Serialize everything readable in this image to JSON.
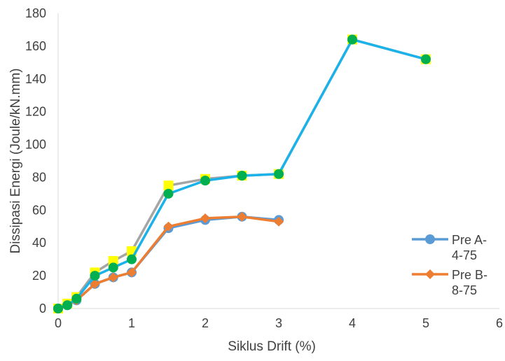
{
  "chart_data": {
    "type": "line",
    "xlabel": "Siklus Drift (%)",
    "ylabel": "Dissipasi Energi (Joule/kN.mm)",
    "xlim": [
      0,
      6
    ],
    "ylim": [
      0,
      180
    ],
    "xticks": [
      0,
      1,
      2,
      3,
      4,
      5,
      6
    ],
    "yticks": [
      0,
      20,
      40,
      60,
      80,
      100,
      120,
      140,
      160,
      180
    ],
    "grid": false,
    "legend_position": "right",
    "series": [
      {
        "key": "gray",
        "color": "#a5a5a5",
        "marker": "square",
        "marker_color": "#ffff00",
        "in_legend": false,
        "x": [
          0,
          0.125,
          0.25,
          0.5,
          0.75,
          1,
          1.5,
          2,
          2.5,
          3,
          4,
          5
        ],
        "y": [
          0,
          3,
          7,
          22,
          29,
          35,
          75,
          79,
          81,
          82,
          164,
          152
        ]
      },
      {
        "name": "Pre A-4-75",
        "legend_lines": [
          "Pre A-",
          "4-75"
        ],
        "color": "#5b9bd5",
        "marker": "circle",
        "in_legend": true,
        "x": [
          0,
          0.125,
          0.25,
          0.5,
          0.75,
          1,
          1.5,
          2,
          2.5,
          3
        ],
        "y": [
          0,
          2,
          5,
          15,
          19,
          22,
          49,
          54,
          56,
          54
        ]
      },
      {
        "name": "Pre B-8-75",
        "legend_lines": [
          "Pre B-",
          "8-75"
        ],
        "color": "#ed7d31",
        "marker": "diamond",
        "in_legend": true,
        "x": [
          0,
          0.125,
          0.25,
          0.5,
          0.75,
          1,
          1.5,
          2,
          2.5,
          3
        ],
        "y": [
          0,
          2,
          5,
          15,
          19,
          22,
          50,
          55,
          56,
          53
        ]
      },
      {
        "key": "cyan",
        "color": "#1ab2e8",
        "marker": "circle",
        "marker_color": "#00b050",
        "in_legend": false,
        "x": [
          0,
          0.125,
          0.25,
          0.5,
          0.75,
          1,
          1.5,
          2,
          2.5,
          3,
          4,
          5
        ],
        "y": [
          0,
          2,
          6,
          20,
          25,
          30,
          70,
          78,
          81,
          82,
          164,
          152
        ]
      }
    ]
  }
}
